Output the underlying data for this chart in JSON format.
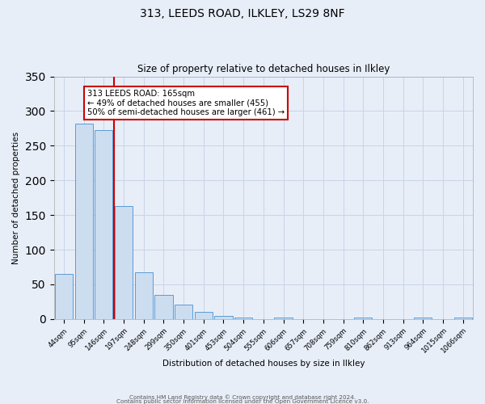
{
  "title_line1": "313, LEEDS ROAD, ILKLEY, LS29 8NF",
  "title_line2": "Size of property relative to detached houses in Ilkley",
  "xlabel": "Distribution of detached houses by size in Ilkley",
  "ylabel": "Number of detached properties",
  "bar_labels": [
    "44sqm",
    "95sqm",
    "146sqm",
    "197sqm",
    "248sqm",
    "299sqm",
    "350sqm",
    "401sqm",
    "453sqm",
    "504sqm",
    "555sqm",
    "606sqm",
    "657sqm",
    "708sqm",
    "759sqm",
    "810sqm",
    "862sqm",
    "913sqm",
    "964sqm",
    "1015sqm",
    "1066sqm"
  ],
  "bar_values": [
    65,
    282,
    272,
    163,
    67,
    35,
    21,
    10,
    5,
    2,
    0,
    2,
    0,
    0,
    0,
    2,
    0,
    0,
    2,
    0,
    2
  ],
  "bar_color": "#ccddf0",
  "bar_edge_color": "#5b9bd5",
  "vline_color": "#cc0000",
  "annotation_text": "313 LEEDS ROAD: 165sqm\n← 49% of detached houses are smaller (455)\n50% of semi-detached houses are larger (461) →",
  "annotation_box_color": "white",
  "annotation_box_edge_color": "#cc0000",
  "grid_color": "#c8d4e8",
  "background_color": "#e8eef8",
  "ylim": [
    0,
    350
  ],
  "yticks": [
    0,
    50,
    100,
    150,
    200,
    250,
    300,
    350
  ],
  "footer_line1": "Contains HM Land Registry data © Crown copyright and database right 2024.",
  "footer_line2": "Contains public sector information licensed under the Open Government Licence v3.0."
}
